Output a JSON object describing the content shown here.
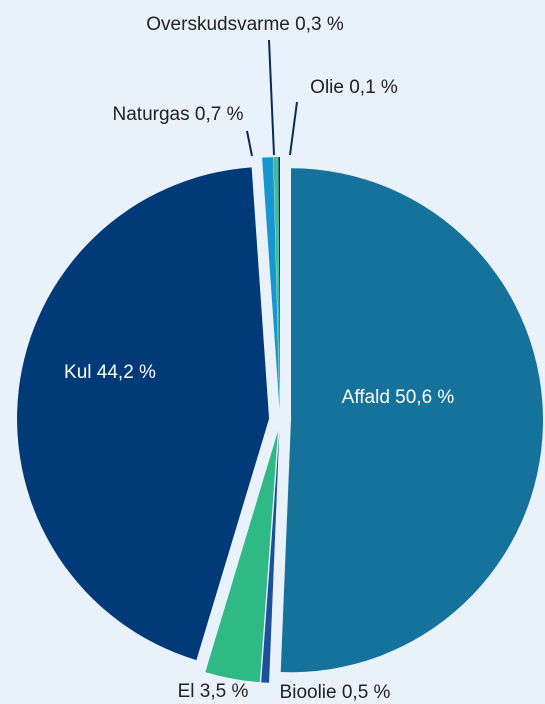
{
  "chart_data": {
    "type": "pie",
    "title": "",
    "slices": [
      {
        "label": "Affald",
        "value": 50.6,
        "display": "Affald 50,6 %",
        "color": "#14729b",
        "label_inside": true
      },
      {
        "label": "Bioolie",
        "value": 0.5,
        "display": "Bioolie 0,5 %",
        "color": "#1e4f9c",
        "label_inside": false
      },
      {
        "label": "El",
        "value": 3.5,
        "display": "El 3,5 %",
        "color": "#2fb985",
        "label_inside": false
      },
      {
        "label": "Kul",
        "value": 44.2,
        "display": "Kul 44,2 %",
        "color": "#003a78",
        "label_inside": true
      },
      {
        "label": "Naturgas",
        "value": 0.7,
        "display": "Naturgas 0,7 %",
        "color": "#1797d2",
        "label_inside": false
      },
      {
        "label": "Overskudsvarme",
        "value": 0.3,
        "display": "Overskudsvarme 0,3 %",
        "color": "#41bd9b",
        "label_inside": false
      },
      {
        "label": "Olie",
        "value": 0.1,
        "display": "Olie 0,1 %",
        "color": "#0e2a55",
        "label_inside": false
      }
    ]
  }
}
